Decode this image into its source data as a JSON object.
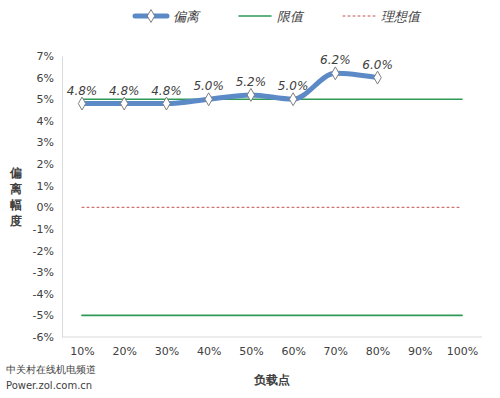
{
  "chart_data": {
    "type": "line",
    "categories": [
      "10%",
      "20%",
      "30%",
      "40%",
      "50%",
      "60%",
      "70%",
      "80%",
      "90%",
      "100%"
    ],
    "x_label": "负载点",
    "y_label": "偏离幅度",
    "annotations": [
      "中关村在线机电频道",
      "Power.zol.com.cn"
    ],
    "ylim": [
      -6,
      7
    ],
    "yticks": [
      {
        "value": -6,
        "label": "-6%"
      },
      {
        "value": -5,
        "label": "-5%"
      },
      {
        "value": -4,
        "label": "-4%"
      },
      {
        "value": -3,
        "label": "-3%"
      },
      {
        "value": -2,
        "label": "-2%"
      },
      {
        "value": -1,
        "label": "-1%"
      },
      {
        "value": 0,
        "label": "0%"
      },
      {
        "value": 1,
        "label": "1%"
      },
      {
        "value": 2,
        "label": "2%"
      },
      {
        "value": 3,
        "label": "3%"
      },
      {
        "value": 4,
        "label": "4%"
      },
      {
        "value": 5,
        "label": "5%"
      },
      {
        "value": 6,
        "label": "6%"
      },
      {
        "value": 7,
        "label": "7%"
      }
    ],
    "legend": "top",
    "data_labels": true,
    "series": [
      {
        "name": "偏离",
        "color": "#5b8ac6",
        "marker": "diamond",
        "line_style": "solid",
        "values": [
          4.8,
          4.8,
          4.8,
          5.0,
          5.2,
          5.0,
          6.2,
          6.0,
          null,
          null
        ],
        "value_labels": [
          "4.8%",
          "4.8%",
          "4.8%",
          "5.0%",
          "5.2%",
          "5.0%",
          "6.2%",
          "6.0%",
          null,
          null
        ]
      },
      {
        "name": "限值",
        "color": "#2e9a55",
        "line_style": "solid",
        "values": [
          5,
          5,
          5,
          5,
          5,
          5,
          5,
          5,
          5,
          5
        ]
      },
      {
        "name": "限值",
        "color": "#2e9a55",
        "line_style": "solid",
        "values": [
          -5,
          -5,
          -5,
          -5,
          -5,
          -5,
          -5,
          -5,
          -5,
          -5
        ]
      },
      {
        "name": "理想值",
        "color": "#c0504d",
        "line_style": "dotted",
        "values": [
          0,
          0,
          0,
          0,
          0,
          0,
          0,
          0,
          0,
          0
        ]
      }
    ]
  }
}
